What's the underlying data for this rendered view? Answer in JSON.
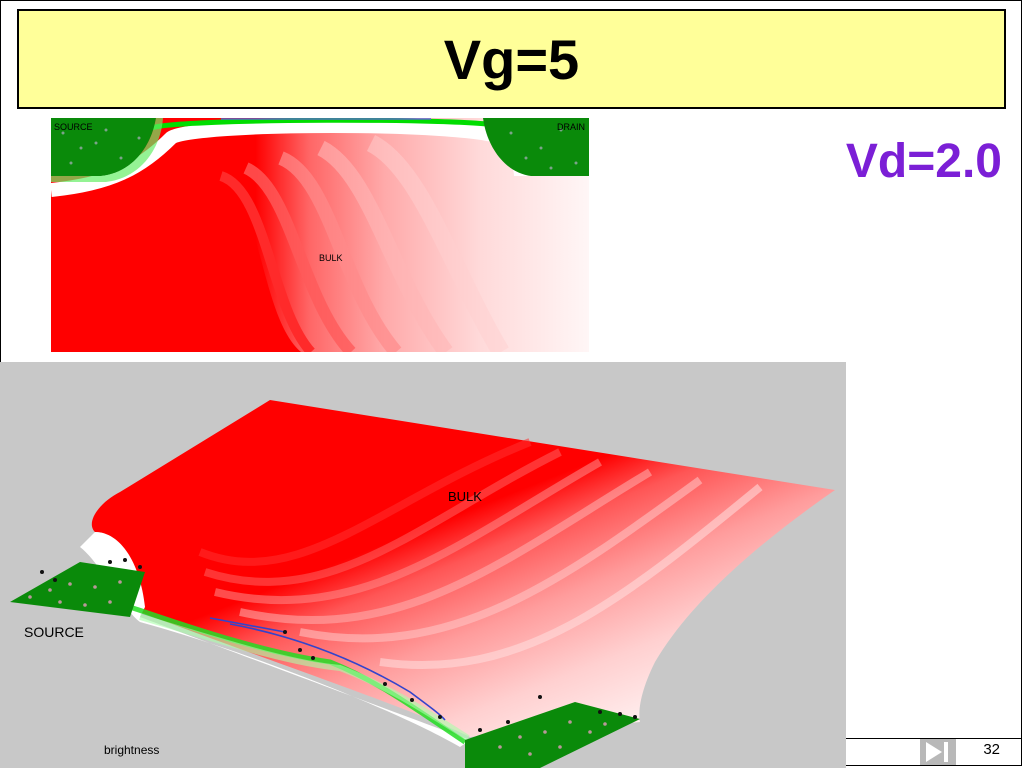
{
  "slide": {
    "title": "Vg=5",
    "subtitle": "Vd=2.0",
    "page_number": "32"
  },
  "top_plot": {
    "labels": {
      "source": "SOURCE",
      "drain": "DRAIN",
      "bulk": "BULK"
    }
  },
  "bottom_plot": {
    "labels": {
      "bulk": "BULK",
      "source": "SOURCE",
      "brightness": "brightness"
    }
  },
  "navigation": {
    "next_icon": "play-next-icon"
  },
  "colors": {
    "title_background": "#ffff99",
    "subtitle": "#7b1fd6",
    "contact_green": "#0a8a0a",
    "high_potential_red": "#ff0000",
    "plot_background": "#c8c8c8"
  }
}
